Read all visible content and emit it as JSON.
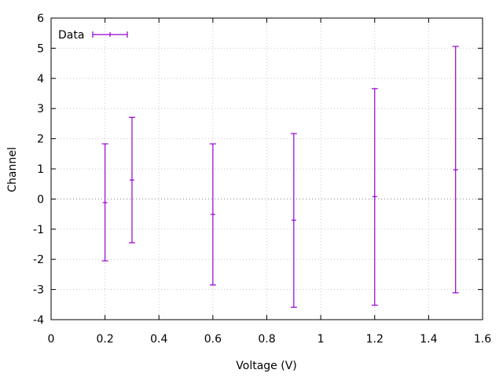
{
  "chart_data": {
    "type": "scatter",
    "xlabel": "Voltage (V)",
    "ylabel": "Channel",
    "xlim": [
      0,
      1.6
    ],
    "ylim": [
      -4,
      6
    ],
    "xticks": [
      0,
      0.2,
      0.4,
      0.6,
      0.8,
      1.0,
      1.2,
      1.4,
      1.6
    ],
    "xtick_labels": [
      "0",
      "0.2",
      "0.4",
      "0.6",
      "0.8",
      "1",
      "1.2",
      "1.4",
      "1.6"
    ],
    "yticks": [
      -4,
      -3,
      -2,
      -1,
      0,
      1,
      2,
      3,
      4,
      5,
      6
    ],
    "ytick_labels": [
      "-4",
      "-3",
      "-2",
      "-1",
      "0",
      "1",
      "2",
      "3",
      "4",
      "5",
      "6"
    ],
    "grid": true,
    "legend_position": "top-left",
    "series": [
      {
        "name": "Data",
        "color": "#9400d3",
        "points": [
          {
            "x": 0.2,
            "y": -0.12,
            "ylow": -2.05,
            "yhigh": 1.83
          },
          {
            "x": 0.3,
            "y": 0.63,
            "ylow": -1.45,
            "yhigh": 2.71
          },
          {
            "x": 0.6,
            "y": -0.51,
            "ylow": -2.85,
            "yhigh": 1.83
          },
          {
            "x": 0.9,
            "y": -0.7,
            "ylow": -3.59,
            "yhigh": 2.17
          },
          {
            "x": 1.2,
            "y": 0.08,
            "ylow": -3.52,
            "yhigh": 3.66
          },
          {
            "x": 1.5,
            "y": 0.97,
            "ylow": -3.11,
            "yhigh": 5.06
          }
        ]
      }
    ]
  }
}
